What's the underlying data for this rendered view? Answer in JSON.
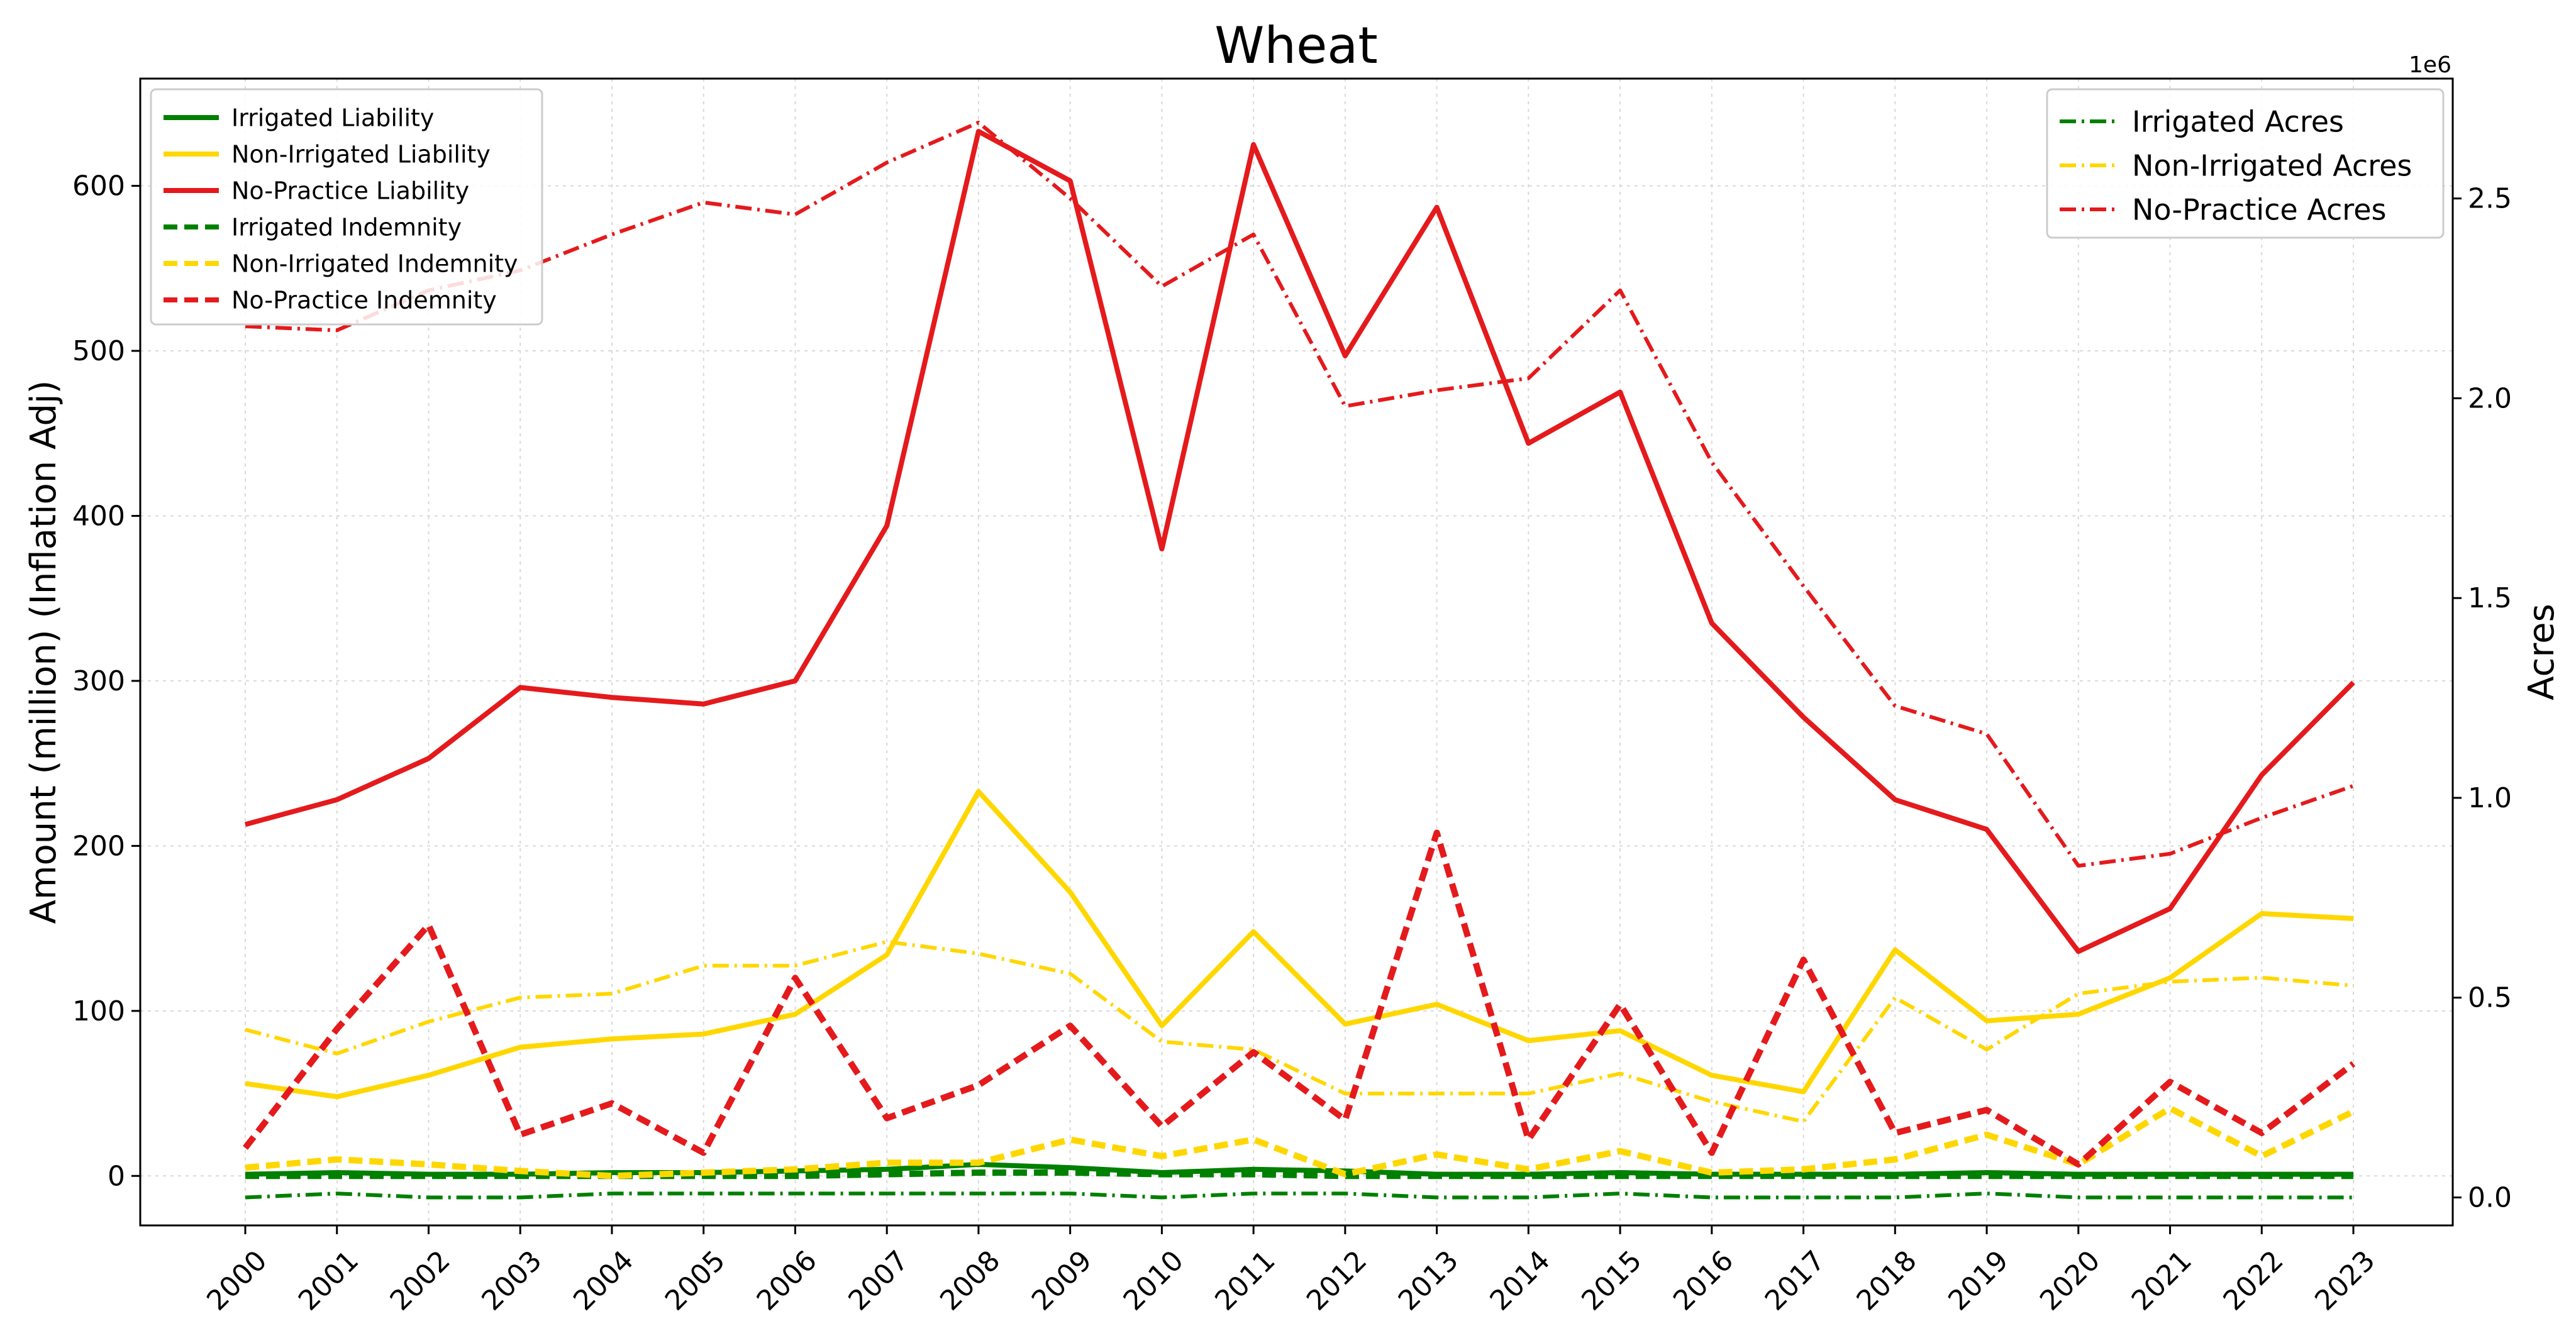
{
  "chart_data": {
    "type": "line",
    "title": "Wheat",
    "ylabel_left": "Amount (million) (Inflation Adj)",
    "ylabel_right": "Acres",
    "right_axis_multiplier": "1e6",
    "x": [
      "2000",
      "2001",
      "2002",
      "2003",
      "2004",
      "2005",
      "2006",
      "2007",
      "2008",
      "2009",
      "2010",
      "2011",
      "2012",
      "2013",
      "2014",
      "2015",
      "2016",
      "2017",
      "2018",
      "2019",
      "2020",
      "2021",
      "2022",
      "2023"
    ],
    "ylim_left": [
      -30,
      665
    ],
    "ylim_right": [
      -0.07,
      2.8
    ],
    "yticks_left": [
      "0",
      "100",
      "200",
      "300",
      "400",
      "500",
      "600"
    ],
    "yticks_right": [
      "0.0",
      "0.5",
      "1.0",
      "1.5",
      "2.0",
      "2.5"
    ],
    "grid": true,
    "legend_left_position": "top-left",
    "legend_right_position": "top-right",
    "series": [
      {
        "name": "Irrigated Liability",
        "axis": "left",
        "style": "solid",
        "color": "#008000",
        "values": [
          1,
          2,
          1,
          1,
          2,
          2,
          3,
          4,
          7,
          5,
          2,
          4,
          3,
          1,
          1,
          2,
          1,
          1,
          1,
          2,
          1,
          1,
          1,
          1
        ]
      },
      {
        "name": "Non-Irrigated Liability",
        "axis": "left",
        "style": "solid",
        "color": "#FFD700",
        "values": [
          56,
          48,
          61,
          78,
          83,
          86,
          98,
          134,
          233,
          172,
          91,
          148,
          92,
          104,
          82,
          88,
          61,
          51,
          137,
          94,
          98,
          120,
          159,
          156
        ]
      },
      {
        "name": "No-Practice Liability",
        "axis": "left",
        "style": "solid",
        "color": "#E41A1C",
        "values": [
          213,
          228,
          253,
          296,
          290,
          286,
          300,
          394,
          633,
          603,
          380,
          625,
          497,
          587,
          444,
          475,
          335,
          278,
          228,
          210,
          136,
          162,
          243,
          299
        ]
      },
      {
        "name": "Irrigated Indemnity",
        "axis": "left",
        "style": "dashed",
        "color": "#008000",
        "values": [
          0,
          0,
          0,
          0,
          0,
          0,
          0,
          1,
          2,
          2,
          1,
          1,
          0,
          0,
          0,
          0,
          0,
          0,
          0,
          0,
          0,
          0,
          0,
          0
        ]
      },
      {
        "name": "Non-Irrigated Indemnity",
        "axis": "left",
        "style": "dashed",
        "color": "#FFD700",
        "values": [
          5,
          10,
          7,
          3,
          0,
          2,
          4,
          8,
          8,
          22,
          12,
          22,
          1,
          13,
          4,
          15,
          2,
          4,
          10,
          25,
          7,
          41,
          12,
          39
        ]
      },
      {
        "name": "No-Practice Indemnity",
        "axis": "left",
        "style": "dashed",
        "color": "#E41A1C",
        "values": [
          17,
          89,
          152,
          25,
          44,
          14,
          120,
          35,
          55,
          91,
          30,
          75,
          34,
          208,
          22,
          104,
          14,
          131,
          26,
          40,
          7,
          57,
          26,
          68
        ]
      },
      {
        "name": "Irrigated Acres",
        "axis": "right",
        "style": "dashdot",
        "color": "#008000",
        "values": [
          0.0,
          0.01,
          0.0,
          0.0,
          0.01,
          0.01,
          0.01,
          0.01,
          0.01,
          0.01,
          0.0,
          0.01,
          0.01,
          0.0,
          0.0,
          0.01,
          0.0,
          0.0,
          0.0,
          0.01,
          0.0,
          0.0,
          0.0,
          0.0
        ]
      },
      {
        "name": "Non-Irrigated Acres",
        "axis": "right",
        "style": "dashdot",
        "color": "#FFD700",
        "values": [
          0.42,
          0.36,
          0.44,
          0.5,
          0.51,
          0.58,
          0.58,
          0.64,
          0.61,
          0.56,
          0.39,
          0.37,
          0.26,
          0.26,
          0.26,
          0.31,
          0.24,
          0.19,
          0.5,
          0.37,
          0.51,
          0.54,
          0.55,
          0.53
        ]
      },
      {
        "name": "No-Practice Acres",
        "axis": "right",
        "style": "dashdot",
        "color": "#E41A1C",
        "values": [
          2.18,
          2.17,
          2.27,
          2.32,
          2.41,
          2.49,
          2.46,
          2.59,
          2.69,
          2.5,
          2.28,
          2.41,
          1.98,
          2.02,
          2.05,
          2.27,
          1.84,
          1.53,
          1.23,
          1.16,
          0.83,
          0.86,
          0.95,
          1.03
        ]
      }
    ]
  }
}
